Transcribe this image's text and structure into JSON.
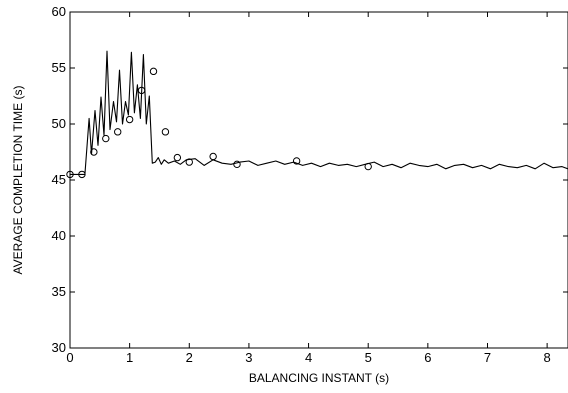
{
  "chart_data": {
    "type": "line",
    "title": "",
    "xlabel": "BALANCING INSTANT (s)",
    "ylabel": "AVERAGE  COMPLETION TIME (s)",
    "xlim": [
      0,
      8.35
    ],
    "ylim": [
      30,
      60
    ],
    "xticks": [
      0,
      1,
      2,
      3,
      4,
      5,
      6,
      7,
      8
    ],
    "yticks": [
      30,
      35,
      40,
      45,
      50,
      55,
      60
    ],
    "xtick_labels": [
      "0",
      "1",
      "2",
      "3",
      "4",
      "5",
      "6",
      "7",
      "8"
    ],
    "ytick_labels": [
      "30",
      "35",
      "40",
      "45",
      "50",
      "55",
      "60"
    ],
    "grid": false,
    "legend": "none",
    "colors": {
      "line": "#000000",
      "background": "#ffffff"
    },
    "series": [
      {
        "style": "line",
        "x": [
          0.0,
          0.1,
          0.2,
          0.25,
          0.32,
          0.36,
          0.42,
          0.47,
          0.52,
          0.57,
          0.62,
          0.67,
          0.73,
          0.78,
          0.83,
          0.88,
          0.93,
          0.98,
          1.03,
          1.08,
          1.13,
          1.18,
          1.23,
          1.28,
          1.33,
          1.38,
          1.43,
          1.48,
          1.53,
          1.58,
          1.65,
          1.75,
          1.85,
          1.95,
          2.1,
          2.25,
          2.4,
          2.55,
          2.7,
          2.85,
          3.0,
          3.15,
          3.3,
          3.45,
          3.6,
          3.75,
          3.9,
          4.05,
          4.2,
          4.35,
          4.5,
          4.65,
          4.8,
          4.95,
          5.1,
          5.25,
          5.4,
          5.55,
          5.7,
          5.85,
          6.0,
          6.15,
          6.3,
          6.45,
          6.6,
          6.75,
          6.9,
          7.05,
          7.2,
          7.35,
          7.5,
          7.65,
          7.8,
          7.95,
          8.1,
          8.25,
          8.35
        ],
        "y": [
          45.5,
          45.5,
          45.5,
          45.5,
          50.5,
          47.3,
          51.2,
          48.1,
          52.4,
          49.0,
          56.5,
          49.5,
          52.0,
          50.2,
          54.8,
          50.0,
          52.0,
          50.8,
          56.4,
          51.0,
          53.5,
          50.5,
          56.2,
          50.0,
          52.5,
          46.5,
          46.6,
          47.0,
          46.4,
          46.8,
          46.5,
          46.7,
          46.4,
          46.8,
          46.9,
          46.3,
          46.8,
          46.5,
          46.4,
          46.6,
          46.7,
          46.3,
          46.5,
          46.7,
          46.4,
          46.6,
          46.3,
          46.5,
          46.2,
          46.5,
          46.3,
          46.4,
          46.2,
          46.4,
          46.6,
          46.2,
          46.4,
          46.1,
          46.5,
          46.3,
          46.2,
          46.4,
          46.0,
          46.3,
          46.4,
          46.1,
          46.3,
          46.0,
          46.4,
          46.2,
          46.1,
          46.3,
          46.0,
          46.5,
          46.1,
          46.2,
          46.0
        ]
      },
      {
        "style": "markers",
        "marker": "circle",
        "x": [
          0.0,
          0.2,
          0.4,
          0.6,
          0.8,
          1.0,
          1.2,
          1.4,
          1.6,
          1.8,
          2.0,
          2.4,
          2.8,
          3.8,
          5.0
        ],
        "y": [
          45.5,
          45.5,
          47.5,
          48.7,
          49.3,
          50.4,
          53.0,
          54.7,
          49.3,
          47.0,
          46.6,
          47.1,
          46.4,
          46.7,
          46.2
        ]
      }
    ]
  }
}
